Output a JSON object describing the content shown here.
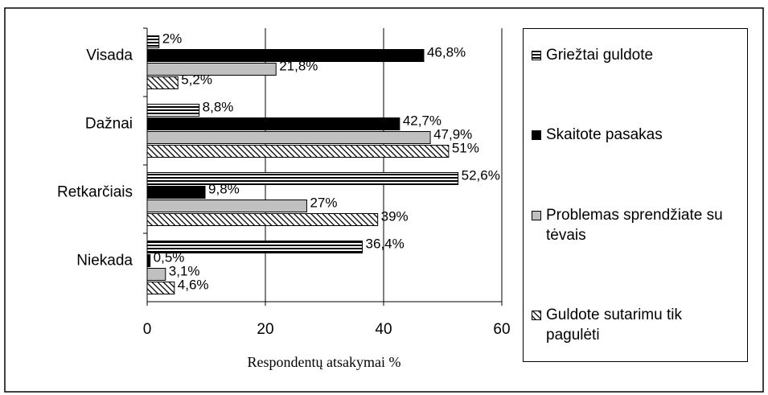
{
  "chart_data": {
    "type": "hbar",
    "categories": [
      "Visada",
      "Dažnai",
      "Retkarčiais",
      "Niekada"
    ],
    "series": [
      {
        "name": "Griežtai guldote",
        "color": "#000000",
        "pattern": "hstripes",
        "values": [
          2,
          8.8,
          52.6,
          36.4
        ],
        "value_labels": [
          "2%",
          "8,8%",
          "52,6%",
          "36,4%"
        ]
      },
      {
        "name": "Skaitote pasakas",
        "color": "#000000",
        "pattern": "solid",
        "values": [
          46.8,
          42.7,
          9.8,
          0.5
        ],
        "value_labels": [
          "46,8%",
          "42,7%",
          "9,8%",
          "0,5%"
        ]
      },
      {
        "name": "Problemas sprendžiate su tėvais",
        "color": "#c0c0c0",
        "pattern": "solid",
        "values": [
          21.8,
          47.9,
          27,
          3.1
        ],
        "value_labels": [
          "21,8%",
          "47,9%",
          "27%",
          "3,1%"
        ]
      },
      {
        "name": "Guldote sutarimu tik pagulėti",
        "color": "#000000",
        "pattern": "hatch",
        "values": [
          5.2,
          51,
          39,
          4.6
        ],
        "value_labels": [
          "5,2%",
          "51%",
          "39%",
          "4,6%"
        ]
      }
    ],
    "xlim": [
      0,
      60
    ],
    "xticks": [
      0,
      20,
      40,
      60
    ],
    "x_label": "Respondentų atsakymai %",
    "grid": true,
    "legend": "right"
  }
}
